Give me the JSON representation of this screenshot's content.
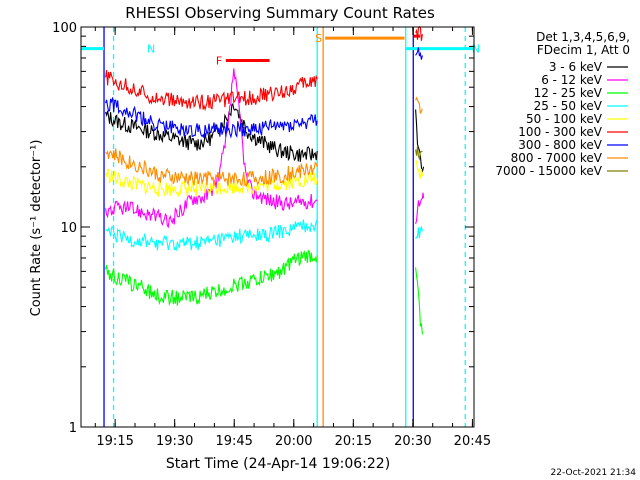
{
  "chart_data": {
    "type": "line",
    "title": "RHESSI Observing Summary Count Rates",
    "xlabel": "Start Time (24-Apr-14 19:06:22)",
    "ylabel": "Count Rate (s⁻¹ detector⁻¹)",
    "x_unit": "minutes after 19:06:22",
    "xlim": [
      0,
      99
    ],
    "ylim": [
      1,
      100
    ],
    "yscale": "log",
    "grid": false,
    "legend_position": "top-right, outside plot",
    "legend_header": [
      "Det 1,3,4,5,6,9,",
      "FDecim 1, Att 0"
    ],
    "x_ticks": [
      {
        "label": "19:15",
        "x": 8.6
      },
      {
        "label": "19:30",
        "x": 23.6
      },
      {
        "label": "19:45",
        "x": 38.6
      },
      {
        "label": "20:00",
        "x": 53.6
      },
      {
        "label": "20:15",
        "x": 68.6
      },
      {
        "label": "20:30",
        "x": 83.6
      },
      {
        "label": "20:45",
        "x": 98.6
      }
    ],
    "y_ticks": [
      {
        "label": "1",
        "value": 1
      },
      {
        "label": "10",
        "value": 10
      },
      {
        "label": "100",
        "value": 100
      }
    ],
    "footer_date": "22-Oct-2021 21:34",
    "series": [
      {
        "name": "3 - 6 keV",
        "color": "#000000",
        "segments": [
          [
            [
              6.2,
              36
            ],
            [
              10,
              33
            ],
            [
              15,
              31
            ],
            [
              20,
              29
            ],
            [
              25,
              27
            ],
            [
              29,
              26
            ],
            [
              33,
              28
            ],
            [
              35,
              32
            ],
            [
              37,
              36
            ],
            [
              38.5,
              42
            ],
            [
              40,
              36
            ],
            [
              42,
              30
            ],
            [
              45,
              27
            ],
            [
              50,
              24
            ],
            [
              55,
              23
            ],
            [
              59,
              23
            ],
            [
              59.5,
              24
            ]
          ],
          [
            [
              84.3,
              38
            ],
            [
              85,
              24
            ],
            [
              85.8,
              20
            ],
            [
              86.3,
              20
            ]
          ]
        ]
      },
      {
        "name": "6 - 12 keV",
        "color": "#ff00ff",
        "segments": [
          [
            [
              6.2,
              12
            ],
            [
              10,
              12.5
            ],
            [
              15,
              12
            ],
            [
              19,
              11.2
            ],
            [
              22,
              10.5
            ],
            [
              25,
              12
            ],
            [
              28,
              14
            ],
            [
              31,
              14.2
            ],
            [
              33,
              15
            ],
            [
              35,
              19
            ],
            [
              37,
              30
            ],
            [
              38.5,
              62
            ],
            [
              40,
              35
            ],
            [
              41.5,
              18
            ],
            [
              43,
              15
            ],
            [
              48,
              13.5
            ],
            [
              53,
              13
            ],
            [
              56,
              13.5
            ],
            [
              59.5,
              13.5
            ]
          ],
          [
            [
              84.3,
              11
            ],
            [
              85,
              13
            ],
            [
              86,
              14
            ],
            [
              86.3,
              14
            ]
          ]
        ]
      },
      {
        "name": "12 - 25 keV",
        "color": "#00ff00",
        "segments": [
          [
            [
              6.2,
              6
            ],
            [
              10,
              5.5
            ],
            [
              15,
              5
            ],
            [
              20,
              4.5
            ],
            [
              25,
              4.4
            ],
            [
              30,
              4.5
            ],
            [
              35,
              4.8
            ],
            [
              40,
              5.2
            ],
            [
              45,
              5.5
            ],
            [
              50,
              6.0
            ],
            [
              55,
              7.0
            ],
            [
              59.5,
              7.2
            ]
          ],
          [
            [
              84.3,
              6
            ],
            [
              85,
              4.5
            ],
            [
              85.5,
              3.5
            ],
            [
              86,
              2.9
            ]
          ]
        ]
      },
      {
        "name": "25 - 50 keV",
        "color": "#00ffff",
        "segments": [
          [
            [
              6.2,
              9.5
            ],
            [
              10,
              8.8
            ],
            [
              15,
              8.5
            ],
            [
              20,
              8.3
            ],
            [
              25,
              8.2
            ],
            [
              30,
              8.3
            ],
            [
              35,
              8.6
            ],
            [
              40,
              9.0
            ],
            [
              45,
              9.0
            ],
            [
              50,
              9.4
            ],
            [
              55,
              10
            ],
            [
              59.5,
              10.5
            ]
          ],
          [
            [
              84.3,
              9
            ],
            [
              85,
              9.5
            ],
            [
              86,
              9.5
            ]
          ]
        ]
      },
      {
        "name": "50 - 100 keV",
        "color": "#ffff00",
        "segments": [
          [
            [
              6.2,
              18.5
            ],
            [
              10,
              17
            ],
            [
              15,
              16
            ],
            [
              20,
              15.5
            ],
            [
              25,
              15.5
            ],
            [
              30,
              15.5
            ],
            [
              35,
              15.8
            ],
            [
              40,
              16
            ],
            [
              45,
              16
            ],
            [
              50,
              16.5
            ],
            [
              55,
              17
            ],
            [
              59.5,
              17.5
            ]
          ],
          [
            [
              84.3,
              20
            ],
            [
              85,
              18.5
            ],
            [
              86,
              18
            ]
          ]
        ]
      },
      {
        "name": "100 - 300 keV",
        "color": "#ff0000",
        "segments": [
          [
            [
              6.2,
              56
            ],
            [
              10,
              52
            ],
            [
              15,
              47
            ],
            [
              20,
              44
            ],
            [
              25,
              42
            ],
            [
              30,
              42
            ],
            [
              35,
              43
            ],
            [
              40,
              44
            ],
            [
              45,
              45
            ],
            [
              50,
              47
            ],
            [
              55,
              51
            ],
            [
              59.5,
              55
            ]
          ],
          [
            [
              84.3,
              94
            ],
            [
              85,
              94
            ],
            [
              86,
              92
            ]
          ]
        ]
      },
      {
        "name": "300 - 800 keV",
        "color": "#0000ff",
        "segments": [
          [
            [
              6.2,
              42
            ],
            [
              10,
              40
            ],
            [
              15,
              35
            ],
            [
              20,
              32
            ],
            [
              25,
              31
            ],
            [
              30,
              30.5
            ],
            [
              35,
              30.5
            ],
            [
              40,
              31
            ],
            [
              45,
              31
            ],
            [
              50,
              32
            ],
            [
              55,
              33
            ],
            [
              59.5,
              34
            ]
          ],
          [
            [
              84.3,
              78
            ],
            [
              85,
              75
            ],
            [
              86,
              72
            ]
          ]
        ]
      },
      {
        "name": "800 - 7000 keV",
        "color": "#ff8c00",
        "segments": [
          [
            [
              6.2,
              24
            ],
            [
              10,
              22
            ],
            [
              15,
              20
            ],
            [
              20,
              18
            ],
            [
              25,
              17.5
            ],
            [
              30,
              17.5
            ],
            [
              35,
              17.5
            ],
            [
              40,
              17.5
            ],
            [
              45,
              17.5
            ],
            [
              50,
              18
            ],
            [
              55,
              19
            ],
            [
              59.5,
              20
            ]
          ],
          [
            [
              84.3,
              42
            ],
            [
              85,
              40
            ],
            [
              86,
              39
            ]
          ]
        ]
      },
      {
        "name": "7000 - 15000 keV",
        "color": "#808000",
        "segments": [
          [
            [
              84.3,
              25
            ],
            [
              85,
              24
            ],
            [
              86,
              24
            ]
          ]
        ]
      }
    ],
    "attenuator_bars": [
      {
        "label": "F",
        "color": "#ff0000",
        "x_start": 36.5,
        "x_end": 47.5,
        "y": 68
      },
      {
        "label": "N",
        "color": "#00ffff",
        "x_start": 0,
        "x_end": 5.8,
        "y": 78
      },
      {
        "label": "N",
        "color": "#00ffff",
        "x_start": 81.8,
        "x_end": 99,
        "y": 78
      },
      {
        "label": "S",
        "color": "#ff8c00",
        "x_start": 61.5,
        "x_end": 81.5,
        "y": 88
      },
      {
        "label": "",
        "color": "#ff0000",
        "x_start": 83.8,
        "x_end": 85.4,
        "y": 90
      }
    ],
    "vertical_markers": [
      {
        "color": "#0000ff",
        "style": "solid",
        "x": 5.8
      },
      {
        "color": "#00ffff",
        "style": "dashed",
        "x": 8.2
      },
      {
        "color": "#00ffff",
        "style": "solid",
        "x": 59.5
      },
      {
        "color": "#ff8c00",
        "style": "solid",
        "x": 61.0
      },
      {
        "color": "#00ffff",
        "style": "solid",
        "x": 81.8
      },
      {
        "color": "#00ffff",
        "style": "dashed",
        "x": 96.8
      },
      {
        "color": "#0000ff",
        "style": "solid",
        "x": 83.7
      }
    ]
  }
}
